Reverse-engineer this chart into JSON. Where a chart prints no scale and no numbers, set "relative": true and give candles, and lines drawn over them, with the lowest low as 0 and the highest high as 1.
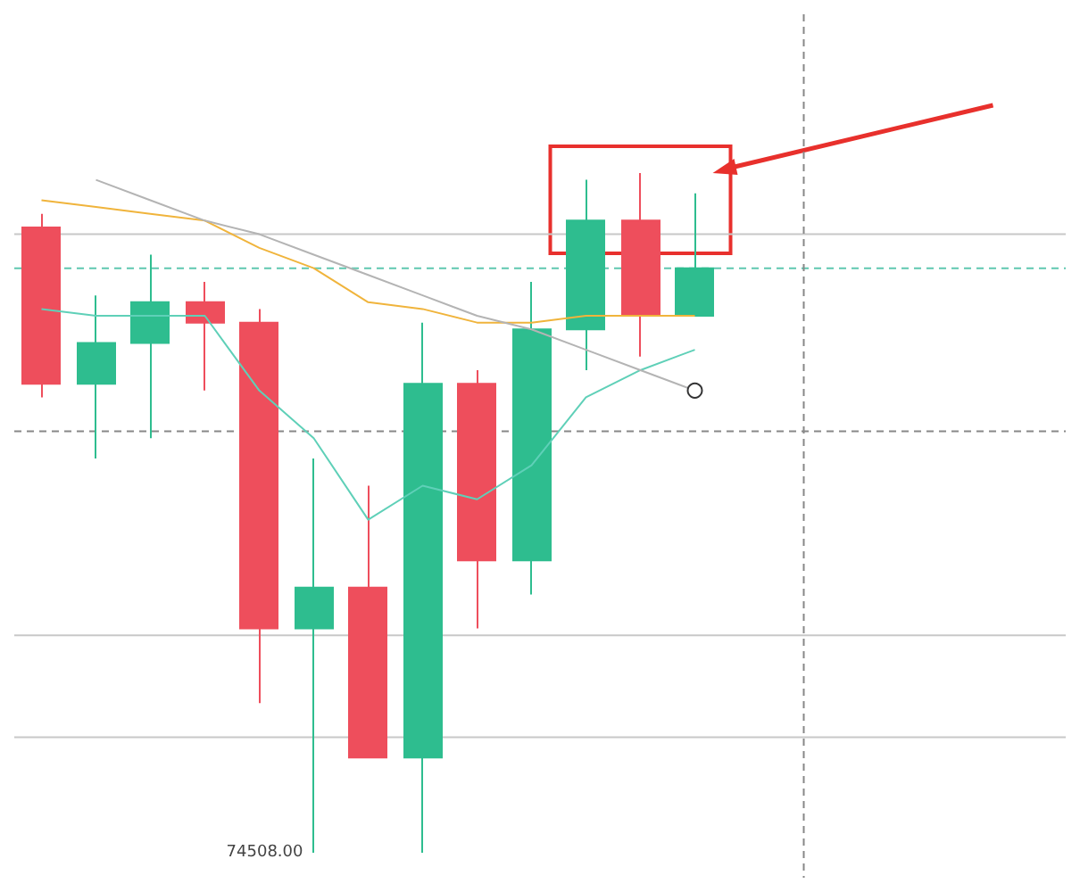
{
  "chart_data": {
    "type": "candlestick",
    "relative": true,
    "categories": [
      null,
      null,
      null,
      null,
      null,
      null,
      null,
      null,
      null,
      null,
      null,
      null,
      null
    ],
    "ohlc": [
      [
        0.92,
        0.94,
        0.67,
        0.69
      ],
      [
        0.69,
        0.82,
        0.58,
        0.75
      ],
      [
        0.75,
        0.88,
        0.61,
        0.81
      ],
      [
        0.81,
        0.84,
        0.68,
        0.78
      ],
      [
        0.78,
        0.8,
        0.22,
        0.33
      ],
      [
        0.33,
        0.58,
        0,
        0.39
      ],
      [
        0.39,
        0.54,
        0.14,
        0.14
      ],
      [
        0.14,
        0.78,
        0,
        0.69
      ],
      [
        0.69,
        0.71,
        0.33,
        0.43
      ],
      [
        0.43,
        0.84,
        0.38,
        0.77
      ],
      [
        0.77,
        0.99,
        0.71,
        0.93
      ],
      [
        0.93,
        1.0,
        0.73,
        0.79
      ],
      [
        0.79,
        0.97,
        0.79,
        0.86
      ]
    ],
    "colors": [
      "#ee4e5c",
      "#2ebd8f",
      "#2ebd8f",
      "#ee4e5c",
      "#ee4e5c",
      "#2ebd8f",
      "#ee4e5c",
      "#2ebd8f",
      "#ee4e5c",
      "#2ebd8f",
      "#2ebd8f",
      "#ee4e5c",
      "#2ebd8f"
    ],
    "series": [
      {
        "type": "line",
        "color": "#f0b43c",
        "values": [
          0.96,
          0.95,
          0.94,
          0.93,
          0.89,
          0.86,
          0.81,
          0.8,
          0.78,
          0.78,
          0.79,
          0.79,
          0.79
        ]
      },
      {
        "type": "line",
        "color": "#5fd0b8",
        "values": [
          0.8,
          0.79,
          0.79,
          0.79,
          0.68,
          0.61,
          0.49,
          0.54,
          0.52,
          0.57,
          0.67,
          0.71,
          0.74
        ]
      },
      {
        "type": "line",
        "color": "#b4b4b4",
        "values": [
          null,
          0.99,
          0.96,
          0.93,
          0.91,
          0.88,
          0.85,
          0.82,
          0.79,
          0.77,
          0.74,
          0.71,
          0.68
        ]
      }
    ],
    "ref_lines": [
      {
        "axis": "y",
        "value": 0.91,
        "color": "#c8c8c8",
        "line_style": "solid"
      },
      {
        "axis": "y",
        "value": 0.86,
        "color": "#5fc8b0",
        "line_style": "dashed"
      },
      {
        "axis": "y",
        "value": 0.62,
        "color": "#888888",
        "line_style": "dashed"
      },
      {
        "axis": "y",
        "value": 0.32,
        "color": "#c8c8c8",
        "line_style": "solid"
      },
      {
        "axis": "y",
        "value": 0.17,
        "color": "#c8c8c8",
        "line_style": "solid"
      }
    ],
    "annotations": [
      "74508.00"
    ]
  }
}
